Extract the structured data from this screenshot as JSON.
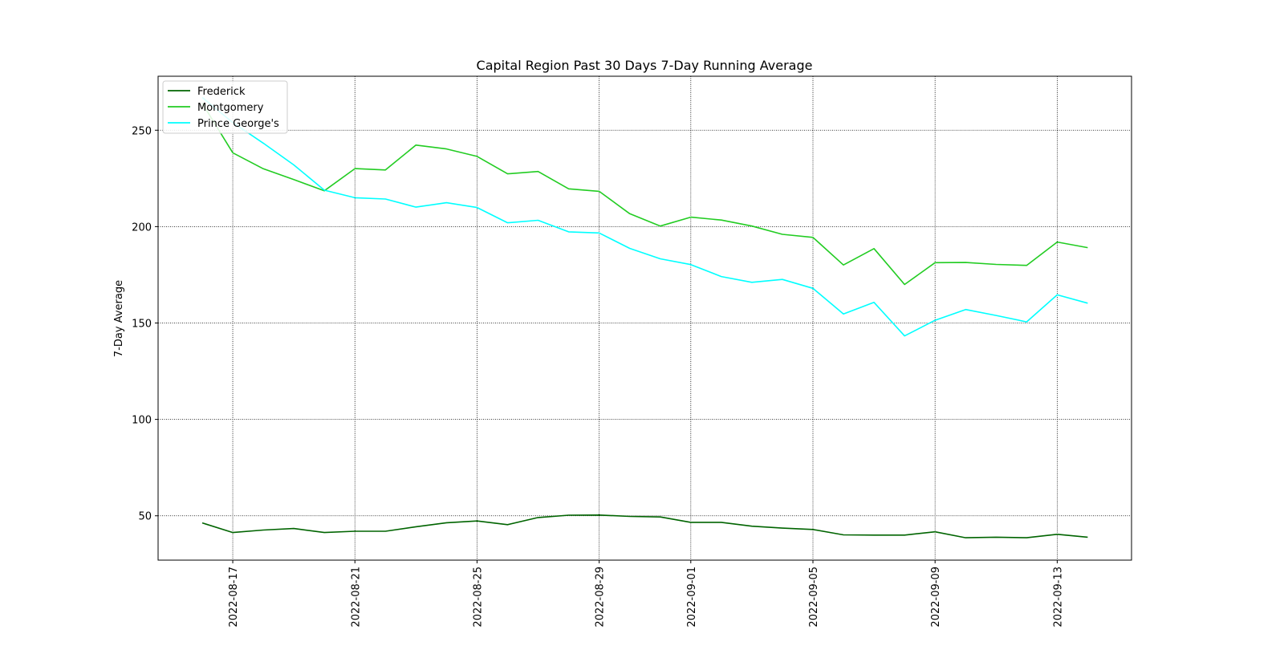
{
  "chart_data": {
    "type": "line",
    "title": "Capital Region Past 30 Days 7-Day Running Average",
    "xlabel": "",
    "ylabel": "7-Day Average",
    "x": [
      "2022-08-16",
      "2022-08-17",
      "2022-08-18",
      "2022-08-19",
      "2022-08-20",
      "2022-08-21",
      "2022-08-22",
      "2022-08-23",
      "2022-08-24",
      "2022-08-25",
      "2022-08-26",
      "2022-08-27",
      "2022-08-28",
      "2022-08-29",
      "2022-08-30",
      "2022-08-31",
      "2022-09-01",
      "2022-09-02",
      "2022-09-03",
      "2022-09-04",
      "2022-09-05",
      "2022-09-06",
      "2022-09-07",
      "2022-09-08",
      "2022-09-09",
      "2022-09-10",
      "2022-09-11",
      "2022-09-12",
      "2022-09-13",
      "2022-09-14"
    ],
    "x_tick_labels": [
      "2022-08-17",
      "2022-08-21",
      "2022-08-25",
      "2022-08-29",
      "2022-09-01",
      "2022-09-05",
      "2022-09-09",
      "2022-09-13"
    ],
    "y_ticks": [
      50,
      100,
      150,
      200,
      250
    ],
    "ylim": [
      27,
      278
    ],
    "grid": true,
    "legend_position": "top-left",
    "series": [
      {
        "name": "Frederick",
        "color": "#006400",
        "values": [
          46.3,
          41.3,
          42.6,
          43.4,
          41.3,
          42.0,
          42.0,
          44.3,
          46.4,
          47.3,
          45.4,
          49.1,
          50.3,
          50.4,
          49.7,
          49.4,
          46.6,
          46.6,
          44.6,
          43.6,
          42.9,
          40.1,
          40.0,
          40.0,
          41.7,
          38.6,
          38.9,
          38.6,
          40.4,
          38.9
        ]
      },
      {
        "name": "Montgomery",
        "color": "#22cc22",
        "values": [
          264.0,
          238.3,
          230.0,
          224.4,
          218.6,
          230.1,
          229.4,
          242.3,
          240.3,
          236.4,
          227.4,
          228.6,
          219.6,
          218.3,
          206.7,
          200.3,
          204.9,
          203.4,
          200.3,
          196.0,
          194.4,
          180.1,
          188.6,
          170.0,
          181.3,
          181.4,
          180.4,
          179.9,
          192.0,
          189.1
        ]
      },
      {
        "name": "Prince George's",
        "color": "#00ffff",
        "values": [
          267.0,
          254.0,
          243.3,
          232.0,
          218.9,
          215.0,
          214.3,
          210.1,
          212.4,
          209.9,
          202.0,
          203.3,
          197.3,
          196.7,
          188.7,
          183.3,
          180.3,
          174.1,
          171.1,
          172.6,
          168.0,
          154.7,
          160.7,
          143.3,
          151.4,
          157.0,
          153.9,
          150.6,
          164.6,
          160.3
        ]
      }
    ]
  }
}
